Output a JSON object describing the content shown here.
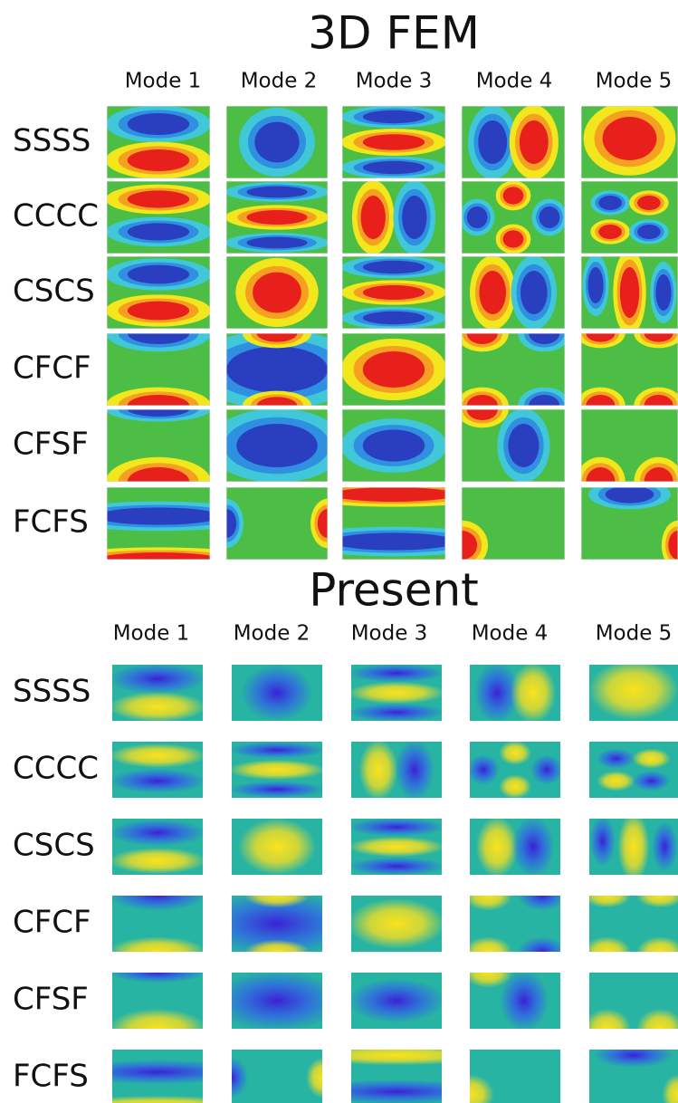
{
  "sections": [
    {
      "title": "3D FEM",
      "columns": [
        "Mode 1",
        "Mode 2",
        "Mode 3",
        "Mode 4",
        "Mode 5"
      ],
      "rows": [
        "SSSS",
        "CCCC",
        "CSCS",
        "CFCF",
        "CFSF",
        "FCFS"
      ]
    },
    {
      "title": "Present",
      "columns": [
        "Mode 1",
        "Mode 2",
        "Mode 3",
        "Mode 4",
        "Mode 5"
      ],
      "rows": [
        "SSSS",
        "CCCC",
        "CSCS",
        "CFCF",
        "CFSF",
        "FCFS"
      ]
    }
  ]
}
